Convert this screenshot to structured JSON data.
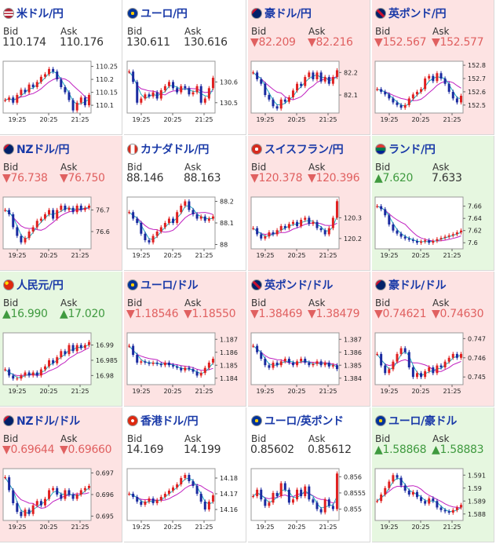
{
  "labels": {
    "bid": "Bid",
    "ask": "Ask"
  },
  "colors": {
    "up": "#3f9a3f",
    "down": "#e06060",
    "candle_up": "#e02020",
    "candle_down": "#1a2aa0",
    "ma_short": "#20b0c0",
    "ma_long": "#c020c0",
    "up_bg": "#e6f7e0",
    "down_bg": "#fde3e3"
  },
  "tiles": [
    {
      "id": "usdjpy",
      "name": "米ドル/円",
      "flag": "us-flag-icon",
      "trend": "flat",
      "bid": "110.174",
      "ask": "110.176",
      "bid_arrow": "",
      "ask_arrow": "",
      "chart_data": {
        "type": "candlestick",
        "x_ticks": [
          "19:25",
          "20:25",
          "21:25"
        ],
        "y_ticks": [
          "110.25",
          "110.2",
          "110.15",
          "110.1"
        ],
        "ylim": [
          110.07,
          110.27
        ],
        "close": [
          110.12,
          110.13,
          110.11,
          110.14,
          110.16,
          110.15,
          110.18,
          110.17,
          110.19,
          110.21,
          110.22,
          110.24,
          110.23,
          110.2,
          110.17,
          110.15,
          110.12,
          110.08,
          110.11,
          110.13,
          110.1,
          110.14
        ]
      }
    },
    {
      "id": "eurjpy",
      "name": "ユーロ/円",
      "flag": "eu-flag-icon",
      "trend": "flat",
      "bid": "130.611",
      "ask": "130.616",
      "bid_arrow": "",
      "ask_arrow": "",
      "chart_data": {
        "type": "candlestick",
        "x_ticks": [
          "19:25",
          "20:25",
          "21:25"
        ],
        "y_ticks": [
          "130.6",
          "130.5"
        ],
        "ylim": [
          130.45,
          130.7
        ],
        "close": [
          130.65,
          130.6,
          130.5,
          130.52,
          130.54,
          130.53,
          130.55,
          130.52,
          130.56,
          130.58,
          130.6,
          130.57,
          130.55,
          130.58,
          130.57,
          130.54,
          130.55,
          130.58,
          130.5,
          130.52,
          130.57,
          130.62
        ]
      }
    },
    {
      "id": "audjpy",
      "name": "豪ドル/円",
      "flag": "au-flag-icon",
      "trend": "down",
      "bid": "82.209",
      "ask": "82.216",
      "bid_arrow": "▼",
      "ask_arrow": "▼",
      "chart_data": {
        "type": "candlestick",
        "x_ticks": [
          "19:25",
          "20:25",
          "21:25"
        ],
        "y_ticks": [
          "82.2",
          "82.1"
        ],
        "ylim": [
          82.02,
          82.25
        ],
        "close": [
          82.2,
          82.17,
          82.15,
          82.1,
          82.08,
          82.05,
          82.04,
          82.08,
          82.07,
          82.09,
          82.12,
          82.15,
          82.14,
          82.18,
          82.2,
          82.17,
          82.2,
          82.16,
          82.18,
          82.15,
          82.18,
          82.21
        ]
      }
    },
    {
      "id": "gbpjpy",
      "name": "英ポンド/円",
      "flag": "gb-flag-icon",
      "trend": "down",
      "bid": "152.567",
      "ask": "152.577",
      "bid_arrow": "▼",
      "ask_arrow": "▼",
      "chart_data": {
        "type": "candlestick",
        "x_ticks": [
          "19:25",
          "20:25",
          "21:25"
        ],
        "y_ticks": [
          "152.8",
          "152.7",
          "152.6",
          "152.5"
        ],
        "ylim": [
          152.44,
          152.83
        ],
        "close": [
          152.62,
          152.6,
          152.58,
          152.55,
          152.52,
          152.5,
          152.48,
          152.5,
          152.55,
          152.58,
          152.6,
          152.62,
          152.7,
          152.72,
          152.68,
          152.74,
          152.7,
          152.66,
          152.6,
          152.55,
          152.52,
          152.57
        ]
      }
    },
    {
      "id": "nzdjpy",
      "name": "NZドル/円",
      "flag": "nz-flag-icon",
      "trend": "down",
      "bid": "76.738",
      "ask": "76.750",
      "bid_arrow": "▼",
      "ask_arrow": "▼",
      "chart_data": {
        "type": "candlestick",
        "x_ticks": [
          "19:25",
          "20:25",
          "21:25"
        ],
        "y_ticks": [
          "76.7",
          "76.6"
        ],
        "ylim": [
          76.52,
          76.76
        ],
        "close": [
          76.7,
          76.68,
          76.62,
          76.58,
          76.55,
          76.57,
          76.6,
          76.62,
          76.65,
          76.66,
          76.68,
          76.7,
          76.66,
          76.7,
          76.72,
          76.7,
          76.71,
          76.69,
          76.72,
          76.7,
          76.71,
          76.72
        ]
      }
    },
    {
      "id": "cadjpy",
      "name": "カナダドル/円",
      "flag": "ca-flag-icon",
      "trend": "flat",
      "bid": "88.146",
      "ask": "88.163",
      "bid_arrow": "",
      "ask_arrow": "",
      "chart_data": {
        "type": "candlestick",
        "x_ticks": [
          "19:25",
          "20:25",
          "21:25"
        ],
        "y_ticks": [
          "88.2",
          "88.1",
          "88"
        ],
        "ylim": [
          87.98,
          88.22
        ],
        "close": [
          88.15,
          88.12,
          88.1,
          88.05,
          88.02,
          88.01,
          88.04,
          88.06,
          88.08,
          88.1,
          88.12,
          88.1,
          88.15,
          88.18,
          88.2,
          88.16,
          88.14,
          88.12,
          88.13,
          88.11,
          88.12,
          88.13
        ]
      }
    },
    {
      "id": "chfjpy",
      "name": "スイスフラン/円",
      "flag": "ch-flag-icon",
      "trend": "down",
      "bid": "120.378",
      "ask": "120.396",
      "bid_arrow": "▼",
      "ask_arrow": "▼",
      "chart_data": {
        "type": "candlestick",
        "x_ticks": [
          "19:25",
          "20:25",
          "21:25"
        ],
        "y_ticks": [
          "120.3",
          "120.2"
        ],
        "ylim": [
          120.15,
          120.4
        ],
        "close": [
          120.25,
          120.22,
          120.2,
          120.21,
          120.23,
          120.22,
          120.24,
          120.26,
          120.25,
          120.27,
          120.28,
          120.26,
          120.29,
          120.3,
          120.27,
          120.28,
          120.25,
          120.24,
          120.22,
          120.25,
          120.3,
          120.38
        ]
      }
    },
    {
      "id": "zarjpy",
      "name": "ランド/円",
      "flag": "za-flag-icon",
      "trend": "up",
      "bid": "7.620",
      "ask": "7.633",
      "bid_arrow": "▲",
      "ask_arrow": "",
      "chart_data": {
        "type": "candlestick",
        "x_ticks": [
          "19:25",
          "20:25",
          "21:25"
        ],
        "y_ticks": [
          "7.66",
          "7.64",
          "7.62",
          "7.6"
        ],
        "ylim": [
          7.59,
          7.675
        ],
        "close": [
          7.66,
          7.655,
          7.645,
          7.63,
          7.62,
          7.615,
          7.61,
          7.607,
          7.605,
          7.603,
          7.6,
          7.602,
          7.604,
          7.6,
          7.603,
          7.606,
          7.608,
          7.61,
          7.612,
          7.614,
          7.617,
          7.62
        ]
      }
    },
    {
      "id": "cnhjpy",
      "name": "人民元/円",
      "flag": "cn-flag-icon",
      "trend": "up",
      "bid": "16.990",
      "ask": "17.020",
      "bid_arrow": "▲",
      "ask_arrow": "▲",
      "chart_data": {
        "type": "candlestick",
        "x_ticks": [
          "19:25",
          "20:25",
          "21:25"
        ],
        "y_ticks": [
          "16.99",
          "16.985",
          "16.98"
        ],
        "ylim": [
          16.977,
          16.994
        ],
        "close": [
          16.982,
          16.98,
          16.979,
          16.979,
          16.98,
          16.981,
          16.98,
          16.981,
          16.98,
          16.982,
          16.983,
          16.985,
          16.984,
          16.986,
          16.988,
          16.987,
          16.99,
          16.988,
          16.99,
          16.989,
          16.99,
          16.991
        ]
      }
    },
    {
      "id": "eurusd",
      "name": "ユーロ/ドル",
      "flag": "eu-flag-icon",
      "trend": "down",
      "bid": "1.18546",
      "ask": "1.18550",
      "bid_arrow": "▼",
      "ask_arrow": "▼",
      "chart_data": {
        "type": "candlestick",
        "x_ticks": [
          "19:25",
          "20:25",
          "21:25"
        ],
        "y_ticks": [
          "1.187",
          "1.186",
          "1.185",
          "1.184"
        ],
        "ylim": [
          1.1835,
          1.1875
        ],
        "close": [
          1.1865,
          1.1858,
          1.1852,
          1.1853,
          1.1852,
          1.1851,
          1.1852,
          1.1851,
          1.185,
          1.1852,
          1.185,
          1.1849,
          1.1848,
          1.1846,
          1.1848,
          1.1847,
          1.1845,
          1.1842,
          1.1844,
          1.1848,
          1.1852,
          1.1855
        ]
      }
    },
    {
      "id": "gbpusd",
      "name": "英ポンド/ドル",
      "flag": "gb-flag-icon",
      "trend": "down",
      "bid": "1.38469",
      "ask": "1.38479",
      "bid_arrow": "▼",
      "ask_arrow": "▼",
      "chart_data": {
        "type": "candlestick",
        "x_ticks": [
          "19:25",
          "20:25",
          "21:25"
        ],
        "y_ticks": [
          "1.387",
          "1.386",
          "1.385",
          "1.384"
        ],
        "ylim": [
          1.3835,
          1.3875
        ],
        "close": [
          1.3865,
          1.386,
          1.3855,
          1.385,
          1.3848,
          1.3852,
          1.385,
          1.3853,
          1.3855,
          1.3852,
          1.385,
          1.3853,
          1.3855,
          1.3852,
          1.385,
          1.3851,
          1.3853,
          1.385,
          1.3852,
          1.3849,
          1.385,
          1.3847
        ]
      }
    },
    {
      "id": "audusd",
      "name": "豪ドル/ドル",
      "flag": "au-flag-icon",
      "trend": "down",
      "bid": "0.74621",
      "ask": "0.74630",
      "bid_arrow": "▼",
      "ask_arrow": "▼",
      "chart_data": {
        "type": "candlestick",
        "x_ticks": [
          "19:25",
          "20:25",
          "21:25"
        ],
        "y_ticks": [
          "0.747",
          "0.746",
          "0.745"
        ],
        "ylim": [
          0.7446,
          0.7473
        ],
        "close": [
          0.7462,
          0.7456,
          0.7452,
          0.7454,
          0.7458,
          0.7462,
          0.7465,
          0.7463,
          0.7455,
          0.745,
          0.7452,
          0.745,
          0.7453,
          0.7455,
          0.7452,
          0.7456,
          0.7455,
          0.7458,
          0.746,
          0.7462,
          0.746,
          0.7462
        ]
      }
    },
    {
      "id": "nzdusd",
      "name": "NZドル/ドル",
      "flag": "nz-flag-icon",
      "trend": "down",
      "bid": "0.69644",
      "ask": "0.69660",
      "bid_arrow": "▼",
      "ask_arrow": "▼",
      "chart_data": {
        "type": "candlestick",
        "x_ticks": [
          "19:25",
          "20:25",
          "21:25"
        ],
        "y_ticks": [
          "0.697",
          "0.696",
          "0.695"
        ],
        "ylim": [
          0.6948,
          0.6972
        ],
        "close": [
          0.6968,
          0.6962,
          0.6956,
          0.6952,
          0.695,
          0.6953,
          0.6951,
          0.6955,
          0.6957,
          0.6955,
          0.6958,
          0.6962,
          0.6963,
          0.696,
          0.6958,
          0.6962,
          0.696,
          0.6958,
          0.696,
          0.6962,
          0.6963,
          0.6964
        ]
      }
    },
    {
      "id": "hkdjpy",
      "name": "香港ドル/円",
      "flag": "hk-flag-icon",
      "trend": "flat",
      "bid": "14.169",
      "ask": "14.199",
      "bid_arrow": "",
      "ask_arrow": "",
      "chart_data": {
        "type": "candlestick",
        "x_ticks": [
          "19:25",
          "20:25",
          "21:25"
        ],
        "y_ticks": [
          "14.18",
          "14.17",
          "14.16"
        ],
        "ylim": [
          14.153,
          14.186
        ],
        "close": [
          14.17,
          14.168,
          14.165,
          14.163,
          14.165,
          14.167,
          14.164,
          14.166,
          14.168,
          14.17,
          14.172,
          14.174,
          14.176,
          14.18,
          14.182,
          14.178,
          14.175,
          14.17,
          14.165,
          14.16,
          14.165,
          14.169
        ]
      }
    },
    {
      "id": "eurgbp",
      "name": "ユーロ/英ポンド",
      "flag": "eu-flag-icon",
      "trend": "flat",
      "bid": "0.85602",
      "ask": "0.85612",
      "bid_arrow": "",
      "ask_arrow": "",
      "chart_data": {
        "type": "candlestick",
        "x_ticks": [
          "19:25",
          "20:25",
          "21:25"
        ],
        "y_ticks": [
          "0.856",
          "0.8555",
          "0.855"
        ],
        "ylim": [
          0.85465,
          0.85625
        ],
        "close": [
          0.8554,
          0.8556,
          0.8553,
          0.8551,
          0.8552,
          0.8555,
          0.8554,
          0.8558,
          0.8556,
          0.8552,
          0.8553,
          0.8556,
          0.8554,
          0.8557,
          0.8553,
          0.8552,
          0.855,
          0.8549,
          0.8553,
          0.8551,
          0.855,
          0.8561
        ]
      }
    },
    {
      "id": "euraud",
      "name": "ユーロ/豪ドル",
      "flag": "eu-flag-icon",
      "trend": "up",
      "bid": "1.58868",
      "ask": "1.58883",
      "bid_arrow": "▲",
      "ask_arrow": "▲",
      "chart_data": {
        "type": "candlestick",
        "x_ticks": [
          "19:25",
          "20:25",
          "21:25"
        ],
        "y_ticks": [
          "1.591",
          "1.59",
          "1.589",
          "1.588"
        ],
        "ylim": [
          1.5875,
          1.5915
        ],
        "close": [
          1.589,
          1.5895,
          1.59,
          1.5905,
          1.591,
          1.5908,
          1.5902,
          1.5898,
          1.5895,
          1.5897,
          1.5893,
          1.589,
          1.5888,
          1.5892,
          1.589,
          1.5885,
          1.5883,
          1.5882,
          1.5881,
          1.5883,
          1.5885,
          1.5887
        ]
      }
    }
  ]
}
